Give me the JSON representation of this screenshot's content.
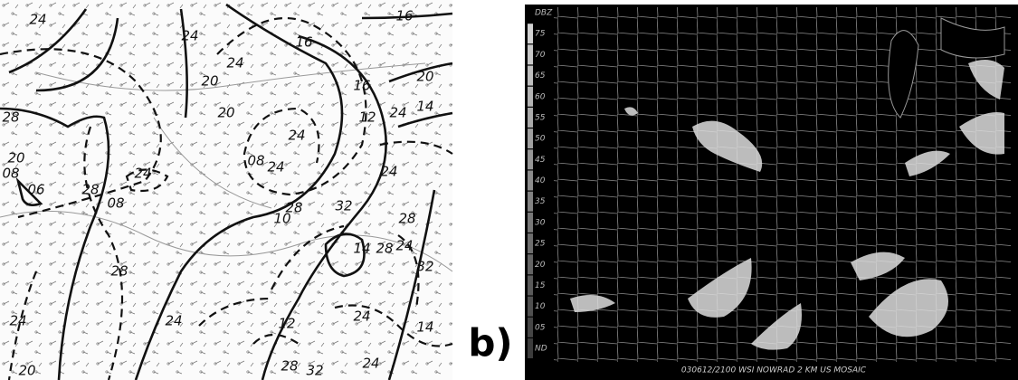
{
  "panel_label": "b)",
  "left_map": {
    "contour_labels": [
      "16",
      "24",
      "24",
      "16",
      "24",
      "20",
      "16",
      "20",
      "12",
      "24",
      "14",
      "28",
      "20",
      "24",
      "20",
      "08",
      "08",
      "24",
      "24",
      "28",
      "08",
      "24",
      "06",
      "28",
      "32",
      "10",
      "28",
      "14",
      "28",
      "24",
      "28",
      "32",
      "12",
      "24",
      "24",
      "24",
      "14",
      "24",
      "32",
      "28",
      "20"
    ]
  },
  "radar": {
    "scale_labels": [
      "DBZ",
      "75",
      "70",
      "65",
      "60",
      "55",
      "50",
      "45",
      "40",
      "35",
      "30",
      "25",
      "20",
      "15",
      "10",
      "05",
      "ND"
    ],
    "caption": "030612/2100 WSI NOWRAD 2 KM US MOSAIC"
  }
}
